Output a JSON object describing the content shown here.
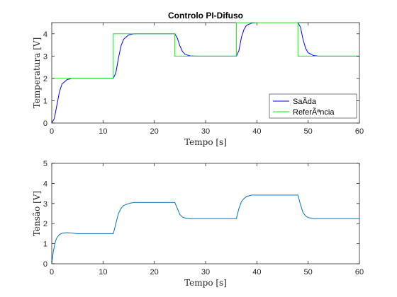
{
  "chart_data": [
    {
      "type": "line",
      "title": "Controlo PI-Difuso",
      "xlabel": "Tempo [s]",
      "ylabel": "Temperatura [V]",
      "xlim": [
        0,
        60
      ],
      "ylim": [
        0,
        4.5
      ],
      "xticks": [
        0,
        10,
        20,
        30,
        40,
        50,
        60
      ],
      "yticks": [
        0,
        1,
        2,
        3,
        4
      ],
      "grid": false,
      "legend": "bottom-right",
      "series": [
        {
          "name": "SaÃ­da",
          "color": "#0000ff",
          "x": [
            0,
            0.5,
            1,
            1.5,
            2,
            3,
            4,
            6,
            8,
            10,
            12,
            12.5,
            13,
            13.5,
            14,
            15,
            16,
            18,
            20,
            22,
            24,
            24.5,
            25,
            25.5,
            26,
            27,
            28,
            30,
            32,
            34,
            36,
            36.5,
            37,
            37.5,
            38,
            39,
            40,
            42,
            44,
            46,
            48,
            48.5,
            49,
            49.5,
            50,
            51,
            52,
            54,
            56,
            58,
            60
          ],
          "y": [
            0,
            0.2,
            0.8,
            1.4,
            1.75,
            1.95,
            2.0,
            2.0,
            2.0,
            2.0,
            2.0,
            2.25,
            2.9,
            3.45,
            3.75,
            3.95,
            4.0,
            4.0,
            4.0,
            4.0,
            4.0,
            3.8,
            3.45,
            3.2,
            3.08,
            3.01,
            3.0,
            3.0,
            3.0,
            3.0,
            3.0,
            3.25,
            3.85,
            4.2,
            4.38,
            4.48,
            4.5,
            4.5,
            4.5,
            4.5,
            4.5,
            4.3,
            3.75,
            3.35,
            3.15,
            3.03,
            3.0,
            3.0,
            3.0,
            3.0,
            3.0
          ]
        },
        {
          "name": "ReferÃªncia",
          "color": "#00ff00",
          "x": [
            0,
            12,
            12,
            24,
            24,
            36,
            36,
            48,
            48,
            60
          ],
          "y": [
            2,
            2,
            4,
            4,
            3,
            3,
            4.5,
            4.5,
            3,
            3
          ]
        }
      ]
    },
    {
      "type": "line",
      "title": "",
      "xlabel": "Tempo [s]",
      "ylabel": "Tensão [V]",
      "xlim": [
        0,
        60
      ],
      "ylim": [
        0,
        5
      ],
      "xticks": [
        0,
        10,
        20,
        30,
        40,
        50,
        60
      ],
      "yticks": [
        0,
        1,
        2,
        3,
        4,
        5
      ],
      "grid": false,
      "series": [
        {
          "color": "#0072bd",
          "x": [
            0,
            0.3,
            0.7,
            1,
            1.5,
            2,
            3,
            5,
            8,
            11,
            12,
            12.5,
            13,
            13.5,
            14,
            15,
            16,
            18,
            20,
            23,
            24,
            24.5,
            25,
            25.5,
            26,
            27,
            30,
            33,
            36,
            36.5,
            37,
            37.5,
            38,
            39,
            40,
            44,
            47,
            48,
            48.5,
            49,
            49.5,
            50,
            51,
            54,
            58,
            60
          ],
          "y": [
            0,
            0.6,
            1.1,
            1.3,
            1.45,
            1.52,
            1.55,
            1.5,
            1.5,
            1.5,
            1.5,
            2.0,
            2.5,
            2.75,
            2.9,
            3.0,
            3.05,
            3.05,
            3.05,
            3.05,
            3.05,
            2.75,
            2.45,
            2.32,
            2.28,
            2.25,
            2.25,
            2.25,
            2.25,
            2.75,
            3.1,
            3.25,
            3.35,
            3.42,
            3.42,
            3.42,
            3.42,
            3.42,
            2.95,
            2.55,
            2.38,
            2.3,
            2.25,
            2.25,
            2.25,
            2.25
          ]
        }
      ]
    }
  ]
}
